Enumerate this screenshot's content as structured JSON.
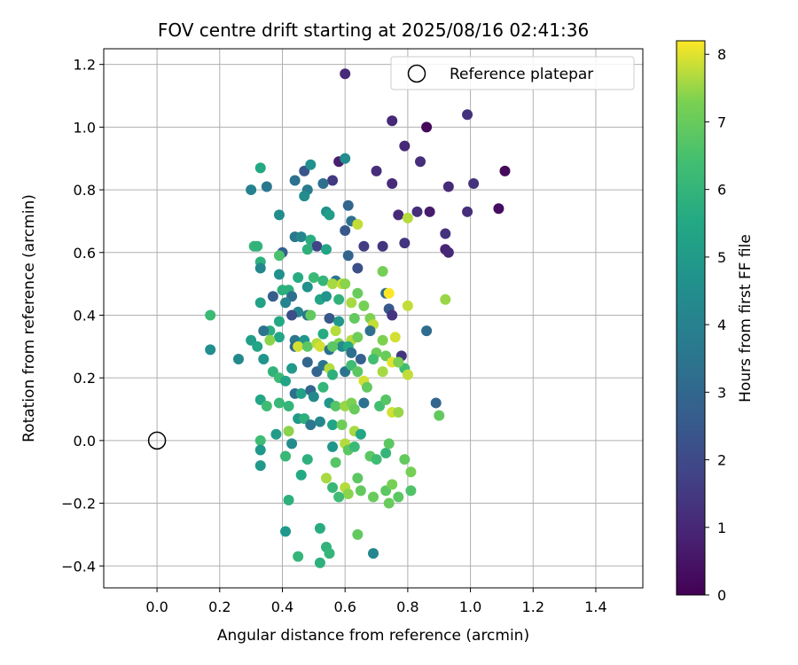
{
  "chart_data": {
    "type": "scatter",
    "title": "FOV centre drift starting at 2025/08/16 02:41:36",
    "xlabel": "Angular distance from reference (arcmin)",
    "ylabel": "Rotation from reference (arcmin)",
    "xlim": [
      -0.17,
      1.55
    ],
    "ylim": [
      -0.47,
      1.25
    ],
    "xticks": [
      "0.0",
      "0.2",
      "0.4",
      "0.6",
      "0.8",
      "1.0",
      "1.2",
      "1.4"
    ],
    "yticks": [
      "−0.4",
      "−0.2",
      "0.0",
      "0.2",
      "0.4",
      "0.6",
      "0.8",
      "1.0",
      "1.2"
    ],
    "grid": true,
    "legend": {
      "placement": "top-right",
      "entries": [
        {
          "label": "Reference platepar",
          "marker": "open-circle"
        }
      ]
    },
    "reference_point": {
      "x": 0.0,
      "y": 0.0
    },
    "colorbar": {
      "label": "Hours from first FF file",
      "range": [
        0,
        8.2
      ],
      "ticks": [
        "0",
        "1",
        "2",
        "3",
        "4",
        "5",
        "6",
        "7",
        "8"
      ],
      "colormap": "viridis"
    },
    "points": [
      [
        0.6,
        1.17,
        1.1
      ],
      [
        0.75,
        1.02,
        1.0
      ],
      [
        0.86,
        1.0,
        0.2
      ],
      [
        0.99,
        1.04,
        1.3
      ],
      [
        0.79,
        0.94,
        1.0
      ],
      [
        0.84,
        0.89,
        1.2
      ],
      [
        1.11,
        0.86,
        0.2
      ],
      [
        0.7,
        0.86,
        1.2
      ],
      [
        0.58,
        0.89,
        0.8
      ],
      [
        0.75,
        0.82,
        1.1
      ],
      [
        0.93,
        0.81,
        1.1
      ],
      [
        1.01,
        0.82,
        1.3
      ],
      [
        0.6,
        0.9,
        4.4
      ],
      [
        0.56,
        0.83,
        1.5
      ],
      [
        0.47,
        0.86,
        2.4
      ],
      [
        0.49,
        0.88,
        4.6
      ],
      [
        0.33,
        0.87,
        5.5
      ],
      [
        0.3,
        0.8,
        4.0
      ],
      [
        0.35,
        0.81,
        3.6
      ],
      [
        0.44,
        0.83,
        3.4
      ],
      [
        0.48,
        0.8,
        3.8
      ],
      [
        0.53,
        0.82,
        3.3
      ],
      [
        0.47,
        0.78,
        4.4
      ],
      [
        0.61,
        0.75,
        3.0
      ],
      [
        0.77,
        0.72,
        1.1
      ],
      [
        0.83,
        0.73,
        1.2
      ],
      [
        0.87,
        0.73,
        0.7
      ],
      [
        0.99,
        0.73,
        1.2
      ],
      [
        1.09,
        0.74,
        0.3
      ],
      [
        0.8,
        0.71,
        7.7
      ],
      [
        0.54,
        0.73,
        4.6
      ],
      [
        0.62,
        0.7,
        3.4
      ],
      [
        0.64,
        0.69,
        7.8
      ],
      [
        0.39,
        0.72,
        4.4
      ],
      [
        0.55,
        0.72,
        5.1
      ],
      [
        0.92,
        0.66,
        1.3
      ],
      [
        0.6,
        0.67,
        2.5
      ],
      [
        0.44,
        0.65,
        3.6
      ],
      [
        0.46,
        0.65,
        4.2
      ],
      [
        0.49,
        0.64,
        5.7
      ],
      [
        0.51,
        0.62,
        1.8
      ],
      [
        0.66,
        0.62,
        1.6
      ],
      [
        0.72,
        0.62,
        1.4
      ],
      [
        0.79,
        0.63,
        1.4
      ],
      [
        0.92,
        0.61,
        0.9
      ],
      [
        0.93,
        0.6,
        1.0
      ],
      [
        0.31,
        0.62,
        6.0
      ],
      [
        0.32,
        0.62,
        5.9
      ],
      [
        0.4,
        0.6,
        2.8
      ],
      [
        0.39,
        0.59,
        6.5
      ],
      [
        0.48,
        0.61,
        5.8
      ],
      [
        0.54,
        0.61,
        5.3
      ],
      [
        0.61,
        0.59,
        2.9
      ],
      [
        0.33,
        0.57,
        5.8
      ],
      [
        0.33,
        0.55,
        4.2
      ],
      [
        0.64,
        0.55,
        2.2
      ],
      [
        0.72,
        0.54,
        7.2
      ],
      [
        0.39,
        0.53,
        4.6
      ],
      [
        0.45,
        0.52,
        5.6
      ],
      [
        0.5,
        0.52,
        6.2
      ],
      [
        0.53,
        0.51,
        6.0
      ],
      [
        0.57,
        0.51,
        3.5
      ],
      [
        0.56,
        0.5,
        7.6
      ],
      [
        0.59,
        0.5,
        7.8
      ],
      [
        0.6,
        0.5,
        7.4
      ],
      [
        0.48,
        0.49,
        4.6
      ],
      [
        0.42,
        0.48,
        5.8
      ],
      [
        0.4,
        0.48,
        5.8
      ],
      [
        0.43,
        0.46,
        3.3
      ],
      [
        0.37,
        0.46,
        2.7
      ],
      [
        0.33,
        0.44,
        5.2
      ],
      [
        0.41,
        0.44,
        4.1
      ],
      [
        0.52,
        0.45,
        5.3
      ],
      [
        0.54,
        0.46,
        4.7
      ],
      [
        0.58,
        0.45,
        5.9
      ],
      [
        0.62,
        0.44,
        7.6
      ],
      [
        0.64,
        0.47,
        7.0
      ],
      [
        0.66,
        0.43,
        7.2
      ],
      [
        0.73,
        0.47,
        3.2
      ],
      [
        0.74,
        0.47,
        8.2
      ],
      [
        0.8,
        0.43,
        7.8
      ],
      [
        0.92,
        0.45,
        7.5
      ],
      [
        0.45,
        0.41,
        4.2
      ],
      [
        0.43,
        0.4,
        2.2
      ],
      [
        0.48,
        0.4,
        3.5
      ],
      [
        0.49,
        0.4,
        6.9
      ],
      [
        0.55,
        0.39,
        2.5
      ],
      [
        0.58,
        0.38,
        4.9
      ],
      [
        0.63,
        0.39,
        6.9
      ],
      [
        0.68,
        0.39,
        7.3
      ],
      [
        0.69,
        0.37,
        7.8
      ],
      [
        0.74,
        0.42,
        2.5
      ],
      [
        0.75,
        0.4,
        1.4
      ],
      [
        0.17,
        0.4,
        6.2
      ],
      [
        0.36,
        0.35,
        5.7
      ],
      [
        0.34,
        0.35,
        3.5
      ],
      [
        0.39,
        0.38,
        5.5
      ],
      [
        0.39,
        0.33,
        5.4
      ],
      [
        0.44,
        0.32,
        3.6
      ],
      [
        0.47,
        0.32,
        4.8
      ],
      [
        0.53,
        0.34,
        5.6
      ],
      [
        0.57,
        0.35,
        7.7
      ],
      [
        0.58,
        0.31,
        7.3
      ],
      [
        0.59,
        0.3,
        4.4
      ],
      [
        0.62,
        0.32,
        7.7
      ],
      [
        0.61,
        0.3,
        5.5
      ],
      [
        0.64,
        0.33,
        7.1
      ],
      [
        0.68,
        0.35,
        3.4
      ],
      [
        0.72,
        0.32,
        7.3
      ],
      [
        0.76,
        0.33,
        7.9
      ],
      [
        0.86,
        0.35,
        3.2
      ],
      [
        0.3,
        0.32,
        5.1
      ],
      [
        0.32,
        0.3,
        5.4
      ],
      [
        0.36,
        0.32,
        7.4
      ],
      [
        0.44,
        0.3,
        3.1
      ],
      [
        0.45,
        0.3,
        7.9
      ],
      [
        0.48,
        0.3,
        6.8
      ],
      [
        0.51,
        0.31,
        7.7
      ],
      [
        0.52,
        0.3,
        7.9
      ],
      [
        0.55,
        0.29,
        3.3
      ],
      [
        0.56,
        0.3,
        6.8
      ],
      [
        0.62,
        0.28,
        3.3
      ],
      [
        0.65,
        0.26,
        2.8
      ],
      [
        0.7,
        0.28,
        7.1
      ],
      [
        0.73,
        0.27,
        7.0
      ],
      [
        0.78,
        0.27,
        1.4
      ],
      [
        0.79,
        0.23,
        6.3
      ],
      [
        0.17,
        0.29,
        4.5
      ],
      [
        0.26,
        0.26,
        4.3
      ],
      [
        0.34,
        0.26,
        4.7
      ],
      [
        0.37,
        0.22,
        5.9
      ],
      [
        0.39,
        0.2,
        6.2
      ],
      [
        0.41,
        0.19,
        5.3
      ],
      [
        0.43,
        0.23,
        4.9
      ],
      [
        0.48,
        0.25,
        3.0
      ],
      [
        0.51,
        0.22,
        2.9
      ],
      [
        0.53,
        0.24,
        3.5
      ],
      [
        0.55,
        0.23,
        7.7
      ],
      [
        0.56,
        0.21,
        5.8
      ],
      [
        0.6,
        0.22,
        3.5
      ],
      [
        0.62,
        0.24,
        6.3
      ],
      [
        0.64,
        0.22,
        6.8
      ],
      [
        0.66,
        0.19,
        7.9
      ],
      [
        0.69,
        0.26,
        6.4
      ],
      [
        0.72,
        0.22,
        7.6
      ],
      [
        0.75,
        0.25,
        8.0
      ],
      [
        0.77,
        0.25,
        7.3
      ],
      [
        0.8,
        0.21,
        7.8
      ],
      [
        0.33,
        0.13,
        5.4
      ],
      [
        0.35,
        0.11,
        6.3
      ],
      [
        0.39,
        0.12,
        6.1
      ],
      [
        0.42,
        0.11,
        6.0
      ],
      [
        0.44,
        0.15,
        3.3
      ],
      [
        0.46,
        0.15,
        5.2
      ],
      [
        0.49,
        0.16,
        3.0
      ],
      [
        0.5,
        0.14,
        4.3
      ],
      [
        0.53,
        0.17,
        6.0
      ],
      [
        0.55,
        0.12,
        4.8
      ],
      [
        0.57,
        0.11,
        6.7
      ],
      [
        0.6,
        0.11,
        7.5
      ],
      [
        0.62,
        0.12,
        7.3
      ],
      [
        0.63,
        0.1,
        7.0
      ],
      [
        0.66,
        0.12,
        3.4
      ],
      [
        0.67,
        0.17,
        6.9
      ],
      [
        0.71,
        0.11,
        6.4
      ],
      [
        0.73,
        0.13,
        6.7
      ],
      [
        0.75,
        0.09,
        7.9
      ],
      [
        0.77,
        0.09,
        7.5
      ],
      [
        0.89,
        0.12,
        3.0
      ],
      [
        0.9,
        0.08,
        6.9
      ],
      [
        0.45,
        0.07,
        4.9
      ],
      [
        0.47,
        0.07,
        5.8
      ],
      [
        0.49,
        0.05,
        3.6
      ],
      [
        0.52,
        0.06,
        4.2
      ],
      [
        0.56,
        0.05,
        5.3
      ],
      [
        0.59,
        0.05,
        7.1
      ],
      [
        0.63,
        0.03,
        7.6
      ],
      [
        0.65,
        0.02,
        5.4
      ],
      [
        0.38,
        0.02,
        5.0
      ],
      [
        0.42,
        0.03,
        7.4
      ],
      [
        0.33,
        0.0,
        6.3
      ],
      [
        0.43,
        -0.01,
        4.4
      ],
      [
        0.56,
        -0.02,
        4.8
      ],
      [
        0.6,
        -0.01,
        7.7
      ],
      [
        0.61,
        -0.03,
        6.8
      ],
      [
        0.63,
        -0.02,
        6.2
      ],
      [
        0.68,
        -0.05,
        6.8
      ],
      [
        0.7,
        -0.06,
        6.3
      ],
      [
        0.73,
        -0.04,
        6.0
      ],
      [
        0.74,
        -0.01,
        6.8
      ],
      [
        0.79,
        -0.06,
        6.9
      ],
      [
        0.33,
        -0.03,
        4.9
      ],
      [
        0.41,
        -0.05,
        6.1
      ],
      [
        0.48,
        -0.06,
        5.8
      ],
      [
        0.57,
        -0.07,
        6.7
      ],
      [
        0.33,
        -0.08,
        4.9
      ],
      [
        0.46,
        -0.11,
        5.5
      ],
      [
        0.81,
        -0.1,
        7.2
      ],
      [
        0.54,
        -0.12,
        7.6
      ],
      [
        0.56,
        -0.15,
        6.1
      ],
      [
        0.6,
        -0.15,
        7.7
      ],
      [
        0.64,
        -0.12,
        6.8
      ],
      [
        0.65,
        -0.16,
        6.9
      ],
      [
        0.69,
        -0.18,
        7.0
      ],
      [
        0.73,
        -0.16,
        6.8
      ],
      [
        0.75,
        -0.14,
        7.2
      ],
      [
        0.77,
        -0.18,
        6.8
      ],
      [
        0.81,
        -0.16,
        6.6
      ],
      [
        0.61,
        -0.17,
        7.4
      ],
      [
        0.58,
        -0.18,
        6.3
      ],
      [
        0.74,
        -0.2,
        7.0
      ],
      [
        0.42,
        -0.19,
        5.8
      ],
      [
        0.52,
        -0.28,
        5.6
      ],
      [
        0.64,
        -0.3,
        6.9
      ],
      [
        0.41,
        -0.29,
        4.9
      ],
      [
        0.54,
        -0.34,
        5.9
      ],
      [
        0.55,
        -0.36,
        6.0
      ],
      [
        0.45,
        -0.37,
        6.0
      ],
      [
        0.52,
        -0.39,
        5.8
      ],
      [
        0.69,
        -0.36,
        4.2
      ]
    ]
  }
}
